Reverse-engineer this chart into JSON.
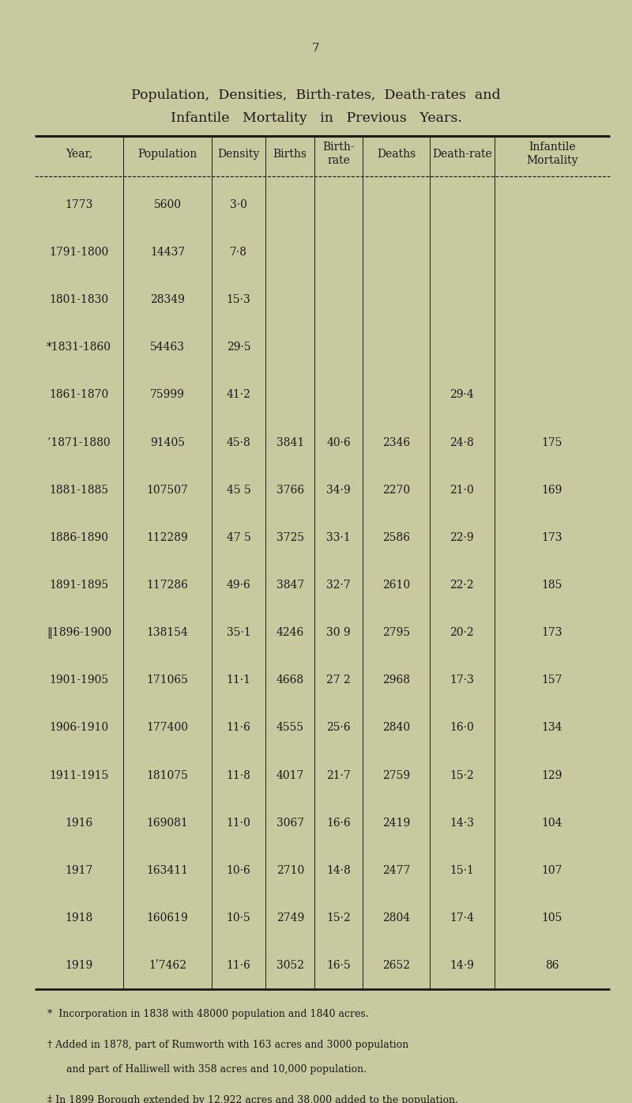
{
  "page_number": "7",
  "title_line1": "Population,  Densities,  Birth-rates,  Death-rates  and",
  "title_line2": "Infantile   Mortality   in   Previous   Years.",
  "bg_color": "#c9c9a0",
  "text_color": "#1a1a1a",
  "col_headers": [
    "Year,",
    "Population",
    "Density",
    "Births",
    "Birth-\nrate",
    "Deaths",
    "Death-rate",
    "Infantile\nMortality"
  ],
  "rows": [
    [
      "1773",
      "5600",
      "3·0",
      "",
      "",
      "",
      "",
      ""
    ],
    [
      "1791-1800",
      "14437",
      "7·8",
      "",
      "",
      "",
      "",
      ""
    ],
    [
      "1801-1830",
      "28349",
      "15·3",
      "",
      "",
      "",
      "",
      ""
    ],
    [
      "*1831-1860",
      "54463",
      "29·5",
      "",
      "",
      "",
      "",
      ""
    ],
    [
      "1861-1870",
      "75999",
      "41·2",
      "",
      "",
      "",
      "29·4",
      ""
    ],
    [
      "’1871-1880",
      "91405",
      "45·8",
      "3841",
      "40·6",
      "2346",
      "24·8",
      "175"
    ],
    [
      "1881-1885",
      "107507",
      "45 5",
      "3766",
      "34·9",
      "2270",
      "21·0",
      "169"
    ],
    [
      "1886-1890",
      "112289",
      "47 5",
      "3725",
      "33·1",
      "2586",
      "22·9",
      "173"
    ],
    [
      "1891-1895",
      "117286",
      "49·6",
      "3847",
      "32·7",
      "2610",
      "22·2",
      "185"
    ],
    [
      "‖1896-1900",
      "138154",
      "35·1",
      "4246",
      "30 9",
      "2795",
      "20·2",
      "173"
    ],
    [
      "1901-1905",
      "171065",
      "11·1",
      "4668",
      "27 2",
      "2968",
      "17·3",
      "157"
    ],
    [
      "1906-1910",
      "177400",
      "11·6",
      "4555",
      "25·6",
      "2840",
      "16·0",
      "134"
    ],
    [
      "1911-1915",
      "181075",
      "11·8",
      "4017",
      "21·7",
      "2759",
      "15·2",
      "129"
    ],
    [
      "1916",
      "169081",
      "11·0",
      "3067",
      "16·6",
      "2419",
      "14·3",
      "104"
    ],
    [
      "1917",
      "163411",
      "10·6",
      "2710",
      "14·8",
      "2477",
      "15·1",
      "107"
    ],
    [
      "1918",
      "160619",
      "10·5",
      "2749",
      "15·2",
      "2804",
      "17·4",
      "105"
    ],
    [
      "1919",
      "1ʹ7462",
      "11·6",
      "3052",
      "16·5",
      "2652",
      "14·9",
      "86"
    ]
  ],
  "footnote1": "*  Incorporation in 1838 with 48000 population and 1840 acres.",
  "footnote2a": "† Added in 1878, part of Rumworth with 163 acres and 3000 population",
  "footnote2b": "      and part of Halliwell with 358 acres and 10,000 population.",
  "footnote3": "‡ In 1899 Borough extended by 12,922 acres and 38,000 added to the population."
}
